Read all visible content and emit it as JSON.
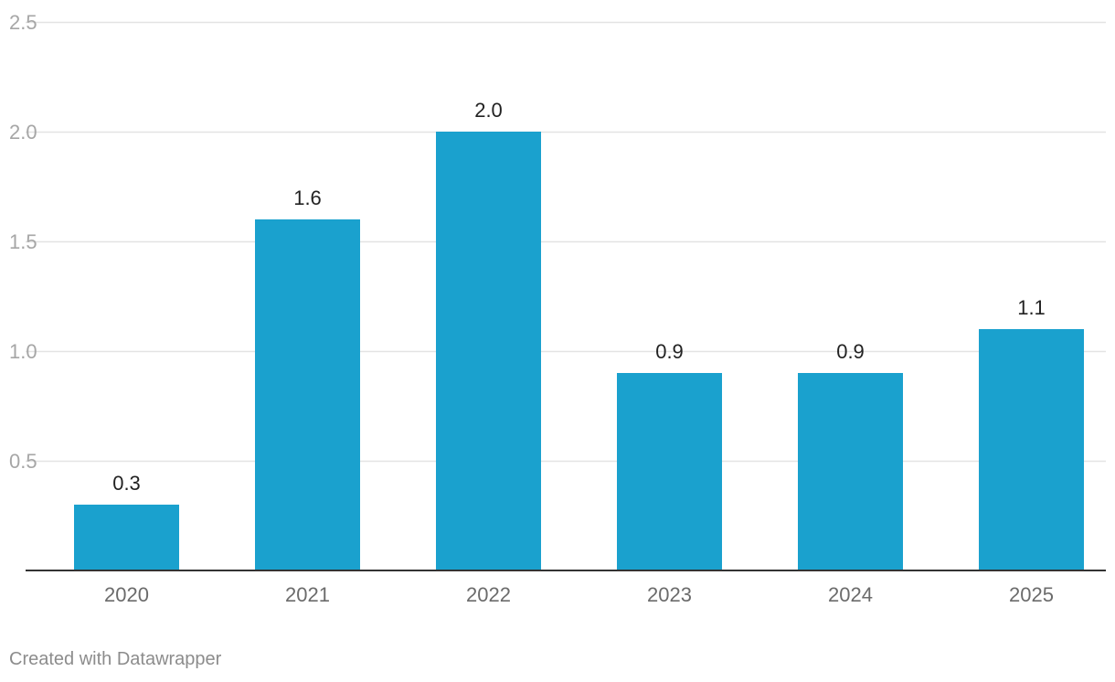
{
  "chart_data": {
    "type": "bar",
    "title": "",
    "xlabel": "",
    "ylabel": "",
    "categories": [
      "2020",
      "2021",
      "2022",
      "2023",
      "2024",
      "2025"
    ],
    "values": [
      0.3,
      1.6,
      2.0,
      0.9,
      0.9,
      1.1
    ],
    "value_labels": [
      "0.3",
      "1.6",
      "2.0",
      "0.9",
      "0.9",
      "1.1"
    ],
    "ylim": [
      0,
      2.5
    ],
    "yticks": [
      0.5,
      1.0,
      1.5,
      2.0,
      2.5
    ],
    "ytick_labels": [
      "0.5",
      "1.0",
      "1.5",
      "2.0",
      "2.5"
    ],
    "grid": true,
    "legend": "none",
    "colors": {
      "bar": "#1aa1ce",
      "grid": "#e3e3e3",
      "axis": "#333333",
      "tick_label": "#a6a6a6",
      "category_label": "#6b6b6b",
      "value_label": "#222222"
    }
  },
  "footer": {
    "credit": "Created with Datawrapper"
  }
}
